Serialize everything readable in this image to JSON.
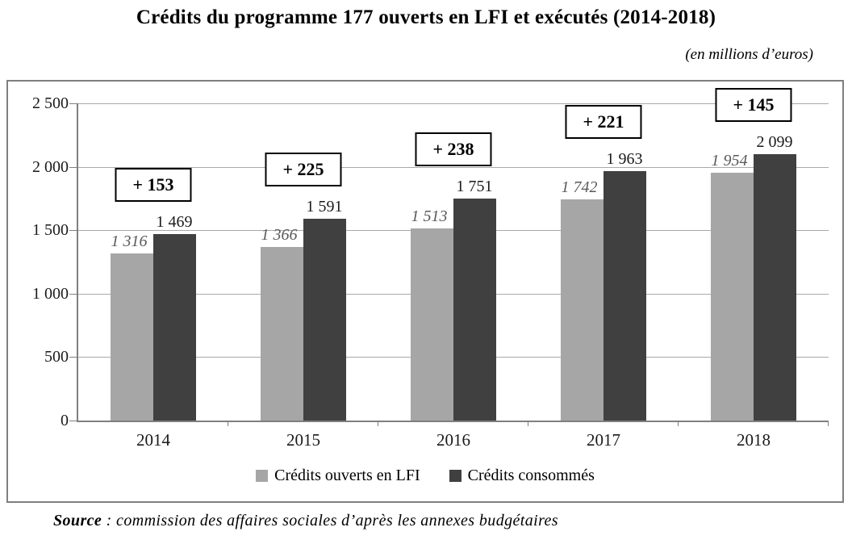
{
  "chart_data": {
    "type": "bar",
    "title": "Crédits du programme 177 ouverts en LFI et exécutés (2014-2018)",
    "subtitle": "(en millions d’euros)",
    "categories": [
      "2014",
      "2015",
      "2016",
      "2017",
      "2018"
    ],
    "series": [
      {
        "name": "Crédits ouverts en LFI",
        "values": [
          1316,
          1366,
          1513,
          1742,
          1954
        ],
        "labels": [
          "1 316",
          "1 366",
          "1 513",
          "1 742",
          "1 954"
        ],
        "color": "#a6a6a6",
        "label_color": "#595959",
        "label_italic": true
      },
      {
        "name": "Crédits consommés",
        "values": [
          1469,
          1591,
          1751,
          1963,
          2099
        ],
        "labels": [
          "1 469",
          "1 591",
          "1 751",
          "1 963",
          "2 099"
        ],
        "color": "#404040",
        "label_color": "#1a1a1a",
        "label_italic": false
      }
    ],
    "diff_labels": [
      "+ 153",
      "+ 225",
      "+ 238",
      "+ 221",
      "+ 145"
    ],
    "ylim": [
      0,
      2500
    ],
    "yticks": [
      {
        "value": 0,
        "label": "0"
      },
      {
        "value": 500,
        "label": "500"
      },
      {
        "value": 1000,
        "label": "1 000"
      },
      {
        "value": 1500,
        "label": "1 500"
      },
      {
        "value": 2000,
        "label": "2 000"
      },
      {
        "value": 2500,
        "label": "2 500"
      }
    ],
    "grid": true,
    "legend_position": "bottom"
  },
  "source": {
    "label": "Source",
    "text": " : commission des affaires sociales d’après les annexes budgétaires"
  }
}
